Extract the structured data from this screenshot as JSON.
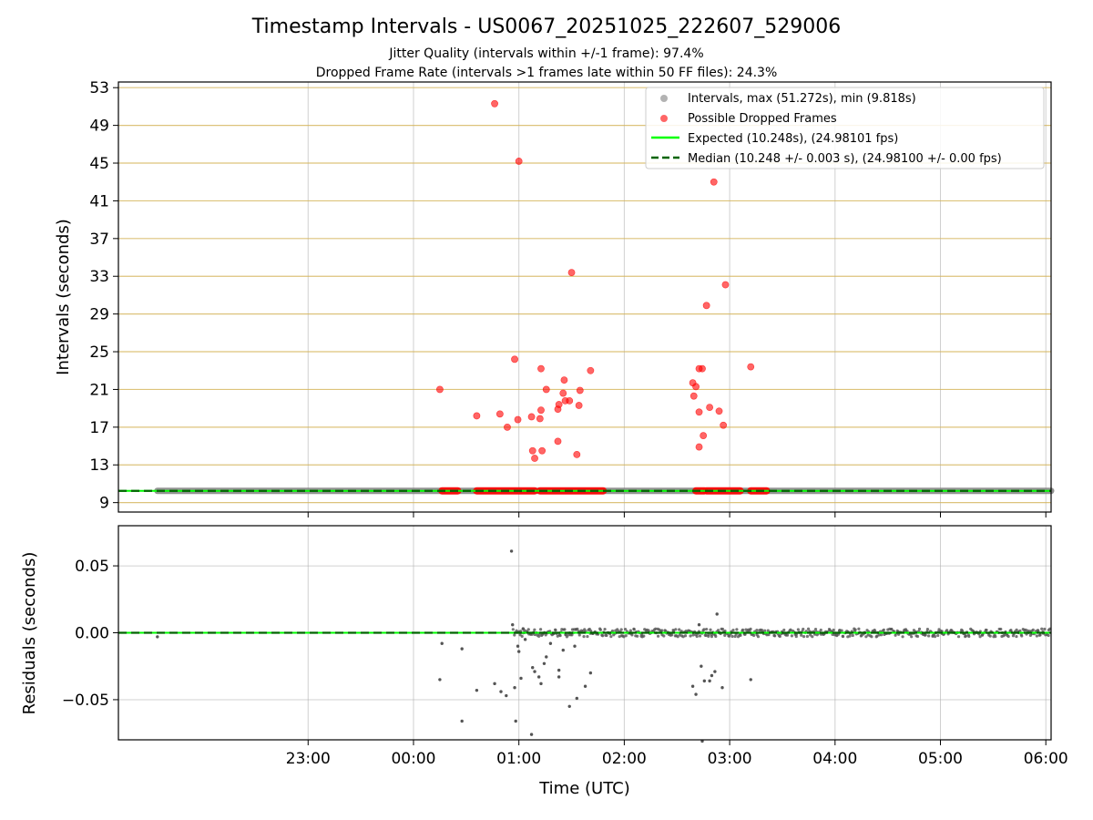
{
  "title": "Timestamp Intervals - US0067_20251025_222607_529006",
  "subtitle_1": "Jitter Quality (intervals within +/-1 frame): 97.4%",
  "subtitle_2": "Dropped Frame Rate (intervals >1 frames late within 50 FF files): 24.3%",
  "colors": {
    "intervals": "#808080",
    "dropped": "#ff0000",
    "expected": "#00ff00",
    "median": "#006400",
    "hgrid_top": "#d4b45a",
    "grid": "#b0b0b0"
  },
  "chart_data": [
    {
      "type": "scatter",
      "id": "intervals",
      "ylabel": "Intervals (seconds)",
      "xlabel": "",
      "x_unit": "hours since 00:00 UTC",
      "xlim": [
        -2.8,
        6.05
      ],
      "ylim": [
        8.0,
        53.6
      ],
      "yticks": [
        9,
        13,
        17,
        21,
        25,
        29,
        33,
        37,
        41,
        45,
        49,
        53
      ],
      "ytick_labels": [
        "9",
        "13",
        "17",
        "21",
        "25",
        "29",
        "33",
        "37",
        "41",
        "45",
        "49",
        "53"
      ],
      "grid": true,
      "legend_position": "top-right",
      "legend": [
        "Intervals, max (51.272s), min (9.818s)",
        "Possible Dropped Frames",
        "Expected (10.248s), (24.98101 fps)",
        "Median (10.248 +/- 0.003 s), (24.98100 +/- 0.00 fps)"
      ],
      "expected_value": 10.248,
      "median_value": 10.248,
      "intervals_range_x": [
        -2.43,
        6.05
      ],
      "intervals_value": 10.248,
      "dropped_clusters": [
        [
          0.27,
          0.42
        ],
        [
          0.6,
          1.15
        ],
        [
          1.2,
          1.8
        ],
        [
          2.68,
          2.76
        ],
        [
          2.78,
          3.1
        ],
        [
          3.2,
          3.35
        ]
      ],
      "series": [
        {
          "name": "Possible Dropped Frames",
          "points": [
            [
              0.25,
              21.0
            ],
            [
              0.77,
              51.3
            ],
            [
              1.0,
              45.2
            ],
            [
              1.5,
              33.4
            ],
            [
              2.85,
              43.0
            ],
            [
              2.96,
              32.1
            ],
            [
              2.78,
              29.9
            ],
            [
              0.96,
              24.2
            ],
            [
              1.21,
              23.2
            ],
            [
              1.68,
              23.0
            ],
            [
              3.2,
              23.4
            ],
            [
              2.71,
              23.2
            ],
            [
              2.74,
              23.2
            ],
            [
              2.65,
              21.7
            ],
            [
              2.68,
              21.3
            ],
            [
              1.43,
              22.0
            ],
            [
              1.26,
              21.0
            ],
            [
              1.58,
              20.9
            ],
            [
              1.42,
              20.6
            ],
            [
              1.44,
              19.8
            ],
            [
              1.48,
              19.8
            ],
            [
              2.66,
              20.3
            ],
            [
              1.38,
              19.4
            ],
            [
              1.57,
              19.3
            ],
            [
              2.81,
              19.1
            ],
            [
              1.37,
              18.9
            ],
            [
              1.21,
              18.8
            ],
            [
              2.9,
              18.7
            ],
            [
              2.71,
              18.6
            ],
            [
              0.82,
              18.4
            ],
            [
              0.6,
              18.2
            ],
            [
              1.12,
              18.1
            ],
            [
              1.2,
              17.9
            ],
            [
              0.99,
              17.8
            ],
            [
              0.89,
              17.0
            ],
            [
              2.94,
              17.2
            ],
            [
              2.75,
              16.1
            ],
            [
              1.37,
              15.5
            ],
            [
              2.71,
              14.9
            ],
            [
              1.13,
              14.5
            ],
            [
              1.22,
              14.5
            ],
            [
              1.15,
              13.7
            ],
            [
              1.55,
              14.1
            ]
          ]
        }
      ]
    },
    {
      "type": "scatter",
      "id": "residuals",
      "ylabel": "Residuals (seconds)",
      "xlabel": "Time (UTC)",
      "x_unit": "hours since 00:00 UTC",
      "xlim": [
        -2.8,
        6.05
      ],
      "ylim": [
        -0.08,
        0.08
      ],
      "yticks": [
        0.05,
        0.0,
        -0.05
      ],
      "ytick_labels": [
        "0.05",
        "0.00",
        "−0.05"
      ],
      "xticks": [
        -1,
        0,
        1,
        2,
        3,
        4,
        5,
        6
      ],
      "xtick_labels": [
        "23:00",
        "00:00",
        "01:00",
        "02:00",
        "03:00",
        "04:00",
        "05:00",
        "06:00"
      ],
      "grid": true,
      "series": [
        {
          "name": "Residuals",
          "points": [
            [
              -2.43,
              -0.003
            ],
            [
              0.25,
              -0.035
            ],
            [
              0.27,
              -0.008
            ],
            [
              0.46,
              -0.012
            ],
            [
              0.46,
              -0.066
            ],
            [
              0.6,
              -0.043
            ],
            [
              0.77,
              -0.038
            ],
            [
              0.83,
              -0.044
            ],
            [
              0.88,
              -0.047
            ],
            [
              0.93,
              0.061
            ],
            [
              0.94,
              0.006
            ],
            [
              0.96,
              -0.041
            ],
            [
              0.97,
              -0.066
            ],
            [
              0.99,
              -0.01
            ],
            [
              1.0,
              -0.014
            ],
            [
              1.02,
              -0.034
            ],
            [
              1.04,
              0.003
            ],
            [
              1.06,
              -0.005
            ],
            [
              1.12,
              -0.076
            ],
            [
              1.13,
              -0.026
            ],
            [
              1.15,
              -0.029
            ],
            [
              1.19,
              -0.033
            ],
            [
              1.21,
              -0.038
            ],
            [
              1.24,
              -0.023
            ],
            [
              1.26,
              -0.018
            ],
            [
              1.3,
              -0.008
            ],
            [
              1.38,
              -0.028
            ],
            [
              1.38,
              -0.033
            ],
            [
              1.42,
              -0.013
            ],
            [
              1.48,
              -0.055
            ],
            [
              1.53,
              -0.01
            ],
            [
              1.55,
              -0.049
            ],
            [
              1.63,
              -0.04
            ],
            [
              1.68,
              -0.03
            ],
            [
              2.65,
              -0.04
            ],
            [
              2.68,
              -0.046
            ],
            [
              2.71,
              0.006
            ],
            [
              2.73,
              -0.025
            ],
            [
              2.74,
              -0.081
            ],
            [
              2.76,
              -0.036
            ],
            [
              2.81,
              -0.036
            ],
            [
              2.83,
              -0.032
            ],
            [
              2.86,
              -0.029
            ],
            [
              2.88,
              0.014
            ],
            [
              2.93,
              -0.041
            ],
            [
              3.2,
              -0.035
            ]
          ]
        }
      ],
      "noise_band_x": [
        0.95,
        6.05
      ],
      "noise_amplitude": 0.003
    }
  ]
}
